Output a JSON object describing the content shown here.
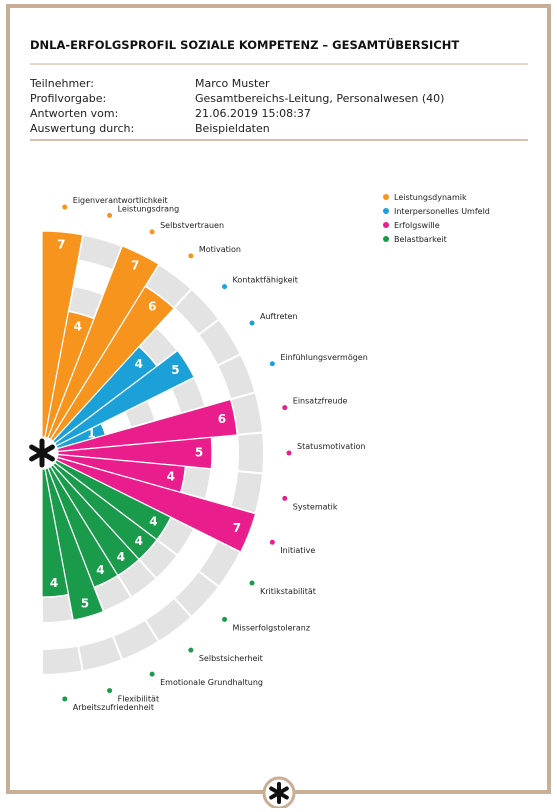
{
  "header": {
    "title": "DNLA-ERFOLGSPROFIL SOZIALE KOMPETENZ – GESAMTÜBERSICHT",
    "rows": [
      [
        "Teilnehmer:",
        "Marco Muster"
      ],
      [
        "Profilvorgabe:",
        "Gesamtbereichs-Leitung, Personalwesen (40)"
      ],
      [
        "Antworten vom:",
        "21.06.2019 15:08:37"
      ],
      [
        "Auswertung durch:",
        "Beispieldaten"
      ]
    ]
  },
  "chart_data": {
    "type": "polar-bar",
    "ylim": [
      0,
      7
    ],
    "series": [
      {
        "name": "Leistungsdynamik",
        "color": "#f7941d",
        "categories": [
          "Eigenverantwortlichkeit",
          "Leistungsdrang",
          "Selbstvertrauen",
          "Motivation"
        ],
        "values": [
          7,
          4,
          7,
          6
        ]
      },
      {
        "name": "Interpersonelles Umfeld",
        "color": "#1ba1d8",
        "categories": [
          "Kontaktfähigkeit",
          "Auftreten",
          "Einfühlungsvermögen"
        ],
        "values": [
          4,
          5,
          1
        ]
      },
      {
        "name": "Erfolgswille",
        "color": "#e91e8c",
        "categories": [
          "Einsatzfreude",
          "Statusmotivation",
          "Systematik",
          "Initiative"
        ],
        "values": [
          6,
          5,
          4,
          7
        ]
      },
      {
        "name": "Belastbarkeit",
        "color": "#1a9b4b",
        "categories": [
          "Kritikstabilität",
          "Misserfolgstoleranz",
          "Selbstsicherheit",
          "Emotionale Grundhaltung",
          "Flexibilität",
          "Arbeitszufriedenheit"
        ],
        "values": [
          4,
          4,
          4,
          4,
          5,
          4
        ]
      }
    ]
  }
}
